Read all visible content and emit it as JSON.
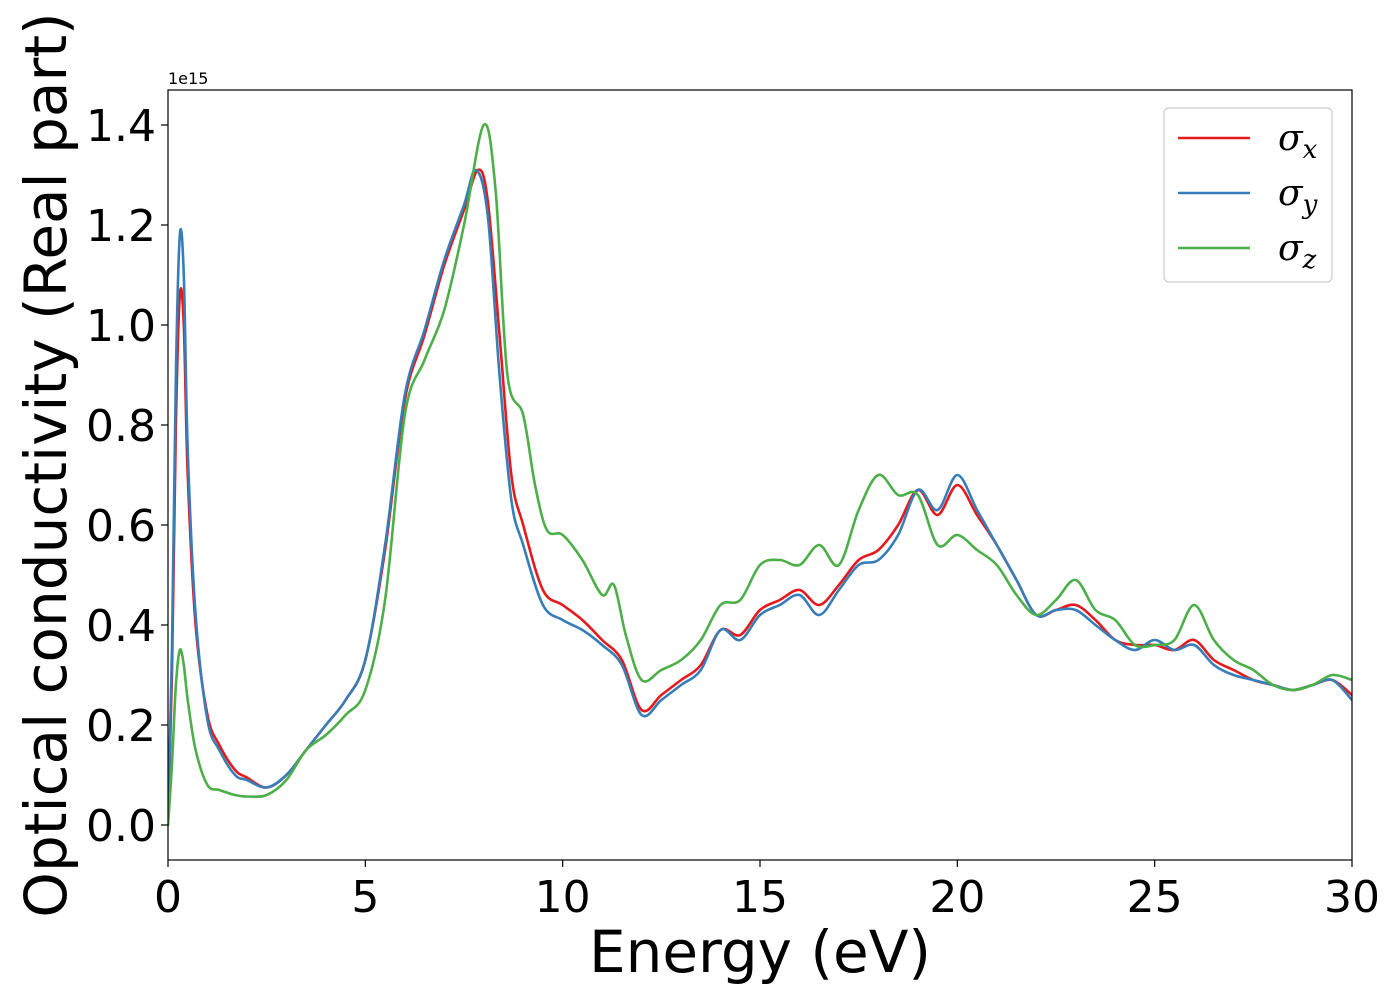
{
  "chart_data": {
    "type": "line",
    "title": "",
    "xlabel": "Energy (eV)",
    "ylabel": "Optical conductivity (Real part)",
    "y_offset_text": "1e15",
    "xlim": [
      0,
      30
    ],
    "ylim": [
      -0.07,
      1.47
    ],
    "xticks": [
      0,
      5,
      10,
      15,
      20,
      25,
      30
    ],
    "xtick_labels": [
      "0",
      "5",
      "10",
      "15",
      "20",
      "25",
      "30"
    ],
    "yticks": [
      0.0,
      0.2,
      0.4,
      0.6,
      0.8,
      1.0,
      1.2,
      1.4
    ],
    "ytick_labels": [
      "0.0",
      "0.2",
      "0.4",
      "0.6",
      "0.8",
      "1.0",
      "1.2",
      "1.4"
    ],
    "grid": false,
    "legend_position": "top-right",
    "series": [
      {
        "name": "σx",
        "legend_symbol": "σ",
        "legend_sub": "x",
        "color": "#e41a1c",
        "points": [
          [
            0,
            0.0
          ],
          [
            0.1,
            0.3
          ],
          [
            0.2,
            0.8
          ],
          [
            0.3,
            1.06
          ],
          [
            0.4,
            1.0
          ],
          [
            0.5,
            0.7
          ],
          [
            0.7,
            0.4
          ],
          [
            1.0,
            0.22
          ],
          [
            1.3,
            0.16
          ],
          [
            1.7,
            0.11
          ],
          [
            2.0,
            0.095
          ],
          [
            2.5,
            0.075
          ],
          [
            3.0,
            0.1
          ],
          [
            3.5,
            0.15
          ],
          [
            4.0,
            0.2
          ],
          [
            4.5,
            0.25
          ],
          [
            5.0,
            0.33
          ],
          [
            5.5,
            0.55
          ],
          [
            6.0,
            0.85
          ],
          [
            6.5,
            0.98
          ],
          [
            7.0,
            1.12
          ],
          [
            7.5,
            1.23
          ],
          [
            7.85,
            1.31
          ],
          [
            8.1,
            1.25
          ],
          [
            8.4,
            0.98
          ],
          [
            8.7,
            0.7
          ],
          [
            9.0,
            0.6
          ],
          [
            9.5,
            0.47
          ],
          [
            10.0,
            0.44
          ],
          [
            10.5,
            0.41
          ],
          [
            11.0,
            0.37
          ],
          [
            11.5,
            0.33
          ],
          [
            12.0,
            0.23
          ],
          [
            12.5,
            0.26
          ],
          [
            13.0,
            0.29
          ],
          [
            13.5,
            0.32
          ],
          [
            14.0,
            0.39
          ],
          [
            14.5,
            0.38
          ],
          [
            15.0,
            0.43
          ],
          [
            15.5,
            0.45
          ],
          [
            16.0,
            0.47
          ],
          [
            16.5,
            0.44
          ],
          [
            17.0,
            0.48
          ],
          [
            17.5,
            0.53
          ],
          [
            18.0,
            0.55
          ],
          [
            18.5,
            0.6
          ],
          [
            19.0,
            0.67
          ],
          [
            19.5,
            0.62
          ],
          [
            20.0,
            0.68
          ],
          [
            20.5,
            0.62
          ],
          [
            21.0,
            0.56
          ],
          [
            21.5,
            0.49
          ],
          [
            22.0,
            0.42
          ],
          [
            22.5,
            0.43
          ],
          [
            23.0,
            0.44
          ],
          [
            23.5,
            0.41
          ],
          [
            24.0,
            0.37
          ],
          [
            24.5,
            0.36
          ],
          [
            25.0,
            0.36
          ],
          [
            25.5,
            0.35
          ],
          [
            26.0,
            0.37
          ],
          [
            26.5,
            0.33
          ],
          [
            27.0,
            0.31
          ],
          [
            27.5,
            0.29
          ],
          [
            28.0,
            0.28
          ],
          [
            28.5,
            0.27
          ],
          [
            29.0,
            0.28
          ],
          [
            29.5,
            0.29
          ],
          [
            30.0,
            0.26
          ]
        ]
      },
      {
        "name": "σy",
        "legend_symbol": "σ",
        "legend_sub": "y",
        "color": "#377eb8",
        "points": [
          [
            0,
            0.0
          ],
          [
            0.1,
            0.35
          ],
          [
            0.2,
            0.9
          ],
          [
            0.3,
            1.18
          ],
          [
            0.4,
            1.1
          ],
          [
            0.5,
            0.75
          ],
          [
            0.7,
            0.42
          ],
          [
            1.0,
            0.21
          ],
          [
            1.3,
            0.15
          ],
          [
            1.7,
            0.1
          ],
          [
            2.0,
            0.09
          ],
          [
            2.5,
            0.075
          ],
          [
            3.0,
            0.1
          ],
          [
            3.5,
            0.15
          ],
          [
            4.0,
            0.2
          ],
          [
            4.5,
            0.25
          ],
          [
            5.0,
            0.33
          ],
          [
            5.5,
            0.56
          ],
          [
            6.0,
            0.86
          ],
          [
            6.5,
            0.99
          ],
          [
            7.0,
            1.13
          ],
          [
            7.5,
            1.24
          ],
          [
            7.8,
            1.31
          ],
          [
            8.1,
            1.22
          ],
          [
            8.4,
            0.9
          ],
          [
            8.7,
            0.65
          ],
          [
            9.0,
            0.56
          ],
          [
            9.5,
            0.44
          ],
          [
            10.0,
            0.41
          ],
          [
            10.5,
            0.39
          ],
          [
            11.0,
            0.36
          ],
          [
            11.5,
            0.32
          ],
          [
            12.0,
            0.22
          ],
          [
            12.5,
            0.25
          ],
          [
            13.0,
            0.28
          ],
          [
            13.5,
            0.31
          ],
          [
            14.0,
            0.39
          ],
          [
            14.5,
            0.37
          ],
          [
            15.0,
            0.42
          ],
          [
            15.5,
            0.44
          ],
          [
            16.0,
            0.46
          ],
          [
            16.5,
            0.42
          ],
          [
            17.0,
            0.47
          ],
          [
            17.5,
            0.52
          ],
          [
            18.0,
            0.53
          ],
          [
            18.5,
            0.58
          ],
          [
            19.0,
            0.67
          ],
          [
            19.5,
            0.63
          ],
          [
            20.0,
            0.7
          ],
          [
            20.5,
            0.63
          ],
          [
            21.0,
            0.56
          ],
          [
            21.5,
            0.49
          ],
          [
            22.0,
            0.42
          ],
          [
            22.5,
            0.43
          ],
          [
            23.0,
            0.43
          ],
          [
            23.5,
            0.4
          ],
          [
            24.0,
            0.37
          ],
          [
            24.5,
            0.35
          ],
          [
            25.0,
            0.37
          ],
          [
            25.5,
            0.35
          ],
          [
            26.0,
            0.36
          ],
          [
            26.5,
            0.32
          ],
          [
            27.0,
            0.3
          ],
          [
            27.5,
            0.29
          ],
          [
            28.0,
            0.28
          ],
          [
            28.5,
            0.27
          ],
          [
            29.0,
            0.28
          ],
          [
            29.5,
            0.29
          ],
          [
            30.0,
            0.25
          ]
        ]
      },
      {
        "name": "σz",
        "legend_symbol": "σ",
        "legend_sub": "z",
        "color": "#4daf4a",
        "points": [
          [
            0,
            0.0
          ],
          [
            0.1,
            0.12
          ],
          [
            0.2,
            0.28
          ],
          [
            0.3,
            0.35
          ],
          [
            0.4,
            0.32
          ],
          [
            0.5,
            0.25
          ],
          [
            0.7,
            0.15
          ],
          [
            1.0,
            0.08
          ],
          [
            1.3,
            0.07
          ],
          [
            1.7,
            0.06
          ],
          [
            2.0,
            0.057
          ],
          [
            2.5,
            0.06
          ],
          [
            3.0,
            0.09
          ],
          [
            3.5,
            0.15
          ],
          [
            4.0,
            0.18
          ],
          [
            4.5,
            0.22
          ],
          [
            5.0,
            0.27
          ],
          [
            5.5,
            0.45
          ],
          [
            6.0,
            0.82
          ],
          [
            6.5,
            0.93
          ],
          [
            7.0,
            1.03
          ],
          [
            7.5,
            1.2
          ],
          [
            8.0,
            1.4
          ],
          [
            8.3,
            1.27
          ],
          [
            8.6,
            0.9
          ],
          [
            9.0,
            0.82
          ],
          [
            9.3,
            0.68
          ],
          [
            9.6,
            0.59
          ],
          [
            10.0,
            0.58
          ],
          [
            10.5,
            0.53
          ],
          [
            11.0,
            0.46
          ],
          [
            11.3,
            0.48
          ],
          [
            11.6,
            0.38
          ],
          [
            12.0,
            0.29
          ],
          [
            12.5,
            0.31
          ],
          [
            13.0,
            0.33
          ],
          [
            13.5,
            0.37
          ],
          [
            14.0,
            0.44
          ],
          [
            14.5,
            0.45
          ],
          [
            15.0,
            0.52
          ],
          [
            15.5,
            0.53
          ],
          [
            16.0,
            0.52
          ],
          [
            16.5,
            0.56
          ],
          [
            17.0,
            0.52
          ],
          [
            17.5,
            0.63
          ],
          [
            18.0,
            0.7
          ],
          [
            18.5,
            0.66
          ],
          [
            19.0,
            0.66
          ],
          [
            19.5,
            0.56
          ],
          [
            20.0,
            0.58
          ],
          [
            20.5,
            0.55
          ],
          [
            21.0,
            0.52
          ],
          [
            21.5,
            0.46
          ],
          [
            22.0,
            0.42
          ],
          [
            22.5,
            0.45
          ],
          [
            23.0,
            0.49
          ],
          [
            23.5,
            0.43
          ],
          [
            24.0,
            0.41
          ],
          [
            24.5,
            0.36
          ],
          [
            25.0,
            0.36
          ],
          [
            25.5,
            0.37
          ],
          [
            26.0,
            0.44
          ],
          [
            26.5,
            0.37
          ],
          [
            27.0,
            0.33
          ],
          [
            27.5,
            0.31
          ],
          [
            28.0,
            0.28
          ],
          [
            28.5,
            0.27
          ],
          [
            29.0,
            0.28
          ],
          [
            29.5,
            0.3
          ],
          [
            30.0,
            0.29
          ]
        ]
      }
    ]
  }
}
